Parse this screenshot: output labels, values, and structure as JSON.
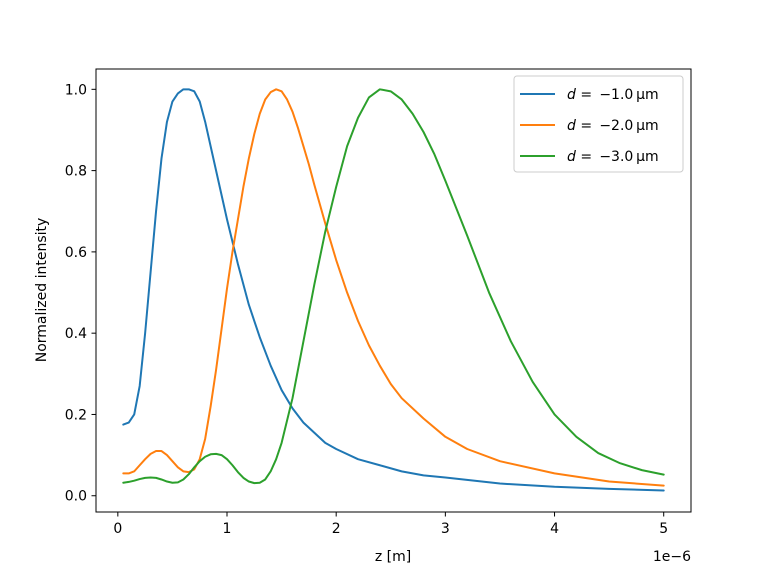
{
  "chart_data": {
    "type": "line",
    "title": "",
    "xlabel": "z [m]",
    "ylabel": "Normalized intensity",
    "x_offset_text": "1e−6",
    "xlim": [
      -0.2,
      5.25
    ],
    "ylim": [
      -0.04,
      1.05
    ],
    "x_ticks": [
      0,
      1,
      2,
      3,
      4,
      5
    ],
    "x_tick_labels": [
      "0",
      "1",
      "2",
      "3",
      "4",
      "5"
    ],
    "y_ticks": [
      0.0,
      0.2,
      0.4,
      0.6,
      0.8,
      1.0
    ],
    "y_tick_labels": [
      "0.0",
      "0.2",
      "0.4",
      "0.6",
      "0.8",
      "1.0"
    ],
    "grid": false,
    "legend_position": "top-right",
    "series": [
      {
        "label_var": "d",
        "label_rest": " =  −1.0 μm",
        "color": "#1f77b4",
        "x": [
          0.05,
          0.1,
          0.15,
          0.2,
          0.25,
          0.3,
          0.35,
          0.4,
          0.45,
          0.5,
          0.55,
          0.6,
          0.65,
          0.7,
          0.75,
          0.8,
          0.85,
          0.9,
          0.95,
          1.0,
          1.1,
          1.2,
          1.3,
          1.4,
          1.5,
          1.6,
          1.7,
          1.8,
          1.9,
          2.0,
          2.2,
          2.4,
          2.6,
          2.8,
          3.0,
          3.5,
          4.0,
          4.5,
          5.0
        ],
        "y": [
          0.175,
          0.18,
          0.2,
          0.27,
          0.4,
          0.55,
          0.7,
          0.83,
          0.92,
          0.97,
          0.99,
          1.0,
          1.0,
          0.995,
          0.97,
          0.92,
          0.86,
          0.8,
          0.74,
          0.68,
          0.57,
          0.47,
          0.39,
          0.32,
          0.26,
          0.215,
          0.18,
          0.155,
          0.13,
          0.115,
          0.09,
          0.075,
          0.06,
          0.05,
          0.045,
          0.03,
          0.022,
          0.017,
          0.013
        ]
      },
      {
        "label_var": "d",
        "label_rest": " =  −2.0 μm",
        "color": "#ff7f0e",
        "x": [
          0.05,
          0.1,
          0.15,
          0.2,
          0.25,
          0.3,
          0.35,
          0.4,
          0.45,
          0.5,
          0.55,
          0.6,
          0.65,
          0.7,
          0.75,
          0.8,
          0.85,
          0.9,
          0.95,
          1.0,
          1.05,
          1.1,
          1.15,
          1.2,
          1.25,
          1.3,
          1.35,
          1.4,
          1.45,
          1.5,
          1.55,
          1.6,
          1.65,
          1.7,
          1.75,
          1.8,
          1.9,
          2.0,
          2.1,
          2.2,
          2.3,
          2.4,
          2.5,
          2.6,
          2.8,
          3.0,
          3.2,
          3.5,
          4.0,
          4.5,
          5.0
        ],
        "y": [
          0.055,
          0.055,
          0.06,
          0.075,
          0.09,
          0.103,
          0.11,
          0.11,
          0.1,
          0.085,
          0.07,
          0.06,
          0.058,
          0.065,
          0.09,
          0.14,
          0.22,
          0.31,
          0.41,
          0.51,
          0.6,
          0.68,
          0.76,
          0.83,
          0.89,
          0.94,
          0.975,
          0.993,
          1.0,
          0.995,
          0.975,
          0.945,
          0.905,
          0.86,
          0.815,
          0.765,
          0.67,
          0.58,
          0.5,
          0.43,
          0.37,
          0.32,
          0.275,
          0.24,
          0.19,
          0.145,
          0.115,
          0.085,
          0.055,
          0.035,
          0.025
        ]
      },
      {
        "label_var": "d",
        "label_rest": " =  −3.0 μm",
        "color": "#2ca02c",
        "x": [
          0.05,
          0.1,
          0.15,
          0.2,
          0.25,
          0.3,
          0.35,
          0.4,
          0.45,
          0.5,
          0.55,
          0.6,
          0.65,
          0.7,
          0.75,
          0.8,
          0.85,
          0.9,
          0.95,
          1.0,
          1.05,
          1.1,
          1.15,
          1.2,
          1.25,
          1.3,
          1.35,
          1.4,
          1.45,
          1.5,
          1.6,
          1.7,
          1.8,
          1.9,
          2.0,
          2.1,
          2.2,
          2.3,
          2.4,
          2.5,
          2.6,
          2.7,
          2.8,
          2.9,
          3.0,
          3.2,
          3.4,
          3.6,
          3.8,
          4.0,
          4.2,
          4.4,
          4.6,
          4.8,
          5.0
        ],
        "y": [
          0.032,
          0.034,
          0.037,
          0.041,
          0.044,
          0.045,
          0.044,
          0.04,
          0.035,
          0.032,
          0.033,
          0.04,
          0.053,
          0.07,
          0.085,
          0.096,
          0.102,
          0.103,
          0.1,
          0.09,
          0.075,
          0.058,
          0.044,
          0.035,
          0.031,
          0.032,
          0.04,
          0.06,
          0.09,
          0.13,
          0.24,
          0.38,
          0.52,
          0.65,
          0.76,
          0.86,
          0.93,
          0.98,
          1.0,
          0.995,
          0.975,
          0.94,
          0.895,
          0.84,
          0.775,
          0.64,
          0.5,
          0.38,
          0.28,
          0.2,
          0.145,
          0.105,
          0.08,
          0.063,
          0.052
        ]
      }
    ]
  }
}
